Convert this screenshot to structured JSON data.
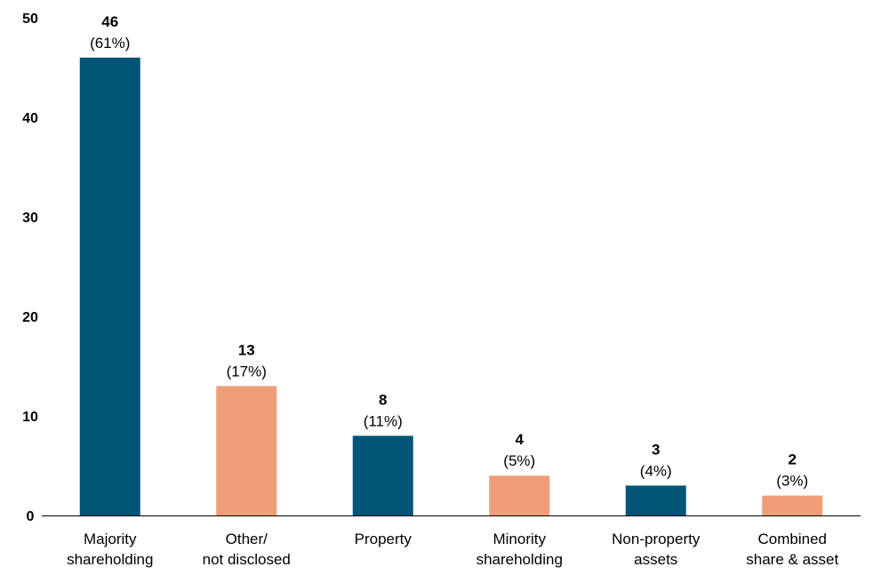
{
  "chart_data": {
    "type": "bar",
    "title": "",
    "xlabel": "",
    "ylabel": "",
    "ylim": [
      0,
      50
    ],
    "yticks": [
      "0",
      "10",
      "20",
      "30",
      "40",
      "50"
    ],
    "grid": false,
    "categories": [
      [
        "Majority",
        "shareholding"
      ],
      [
        "Other/",
        "not disclosed"
      ],
      [
        "Property",
        ""
      ],
      [
        "Minority",
        "shareholding"
      ],
      [
        "Non-property",
        "assets"
      ],
      [
        "Combined",
        "share & asset"
      ]
    ],
    "values": [
      46,
      13,
      8,
      4,
      3,
      2
    ],
    "value_labels": [
      "46",
      "13",
      "8",
      "4",
      "3",
      "2"
    ],
    "percent_labels": [
      "(61%)",
      "(17%)",
      "(11%)",
      "(5%)",
      "(4%)",
      "(3%)"
    ],
    "bar_colors": [
      "#005577",
      "#F09E7A",
      "#005577",
      "#F09E7A",
      "#005577",
      "#F09E7A"
    ]
  }
}
